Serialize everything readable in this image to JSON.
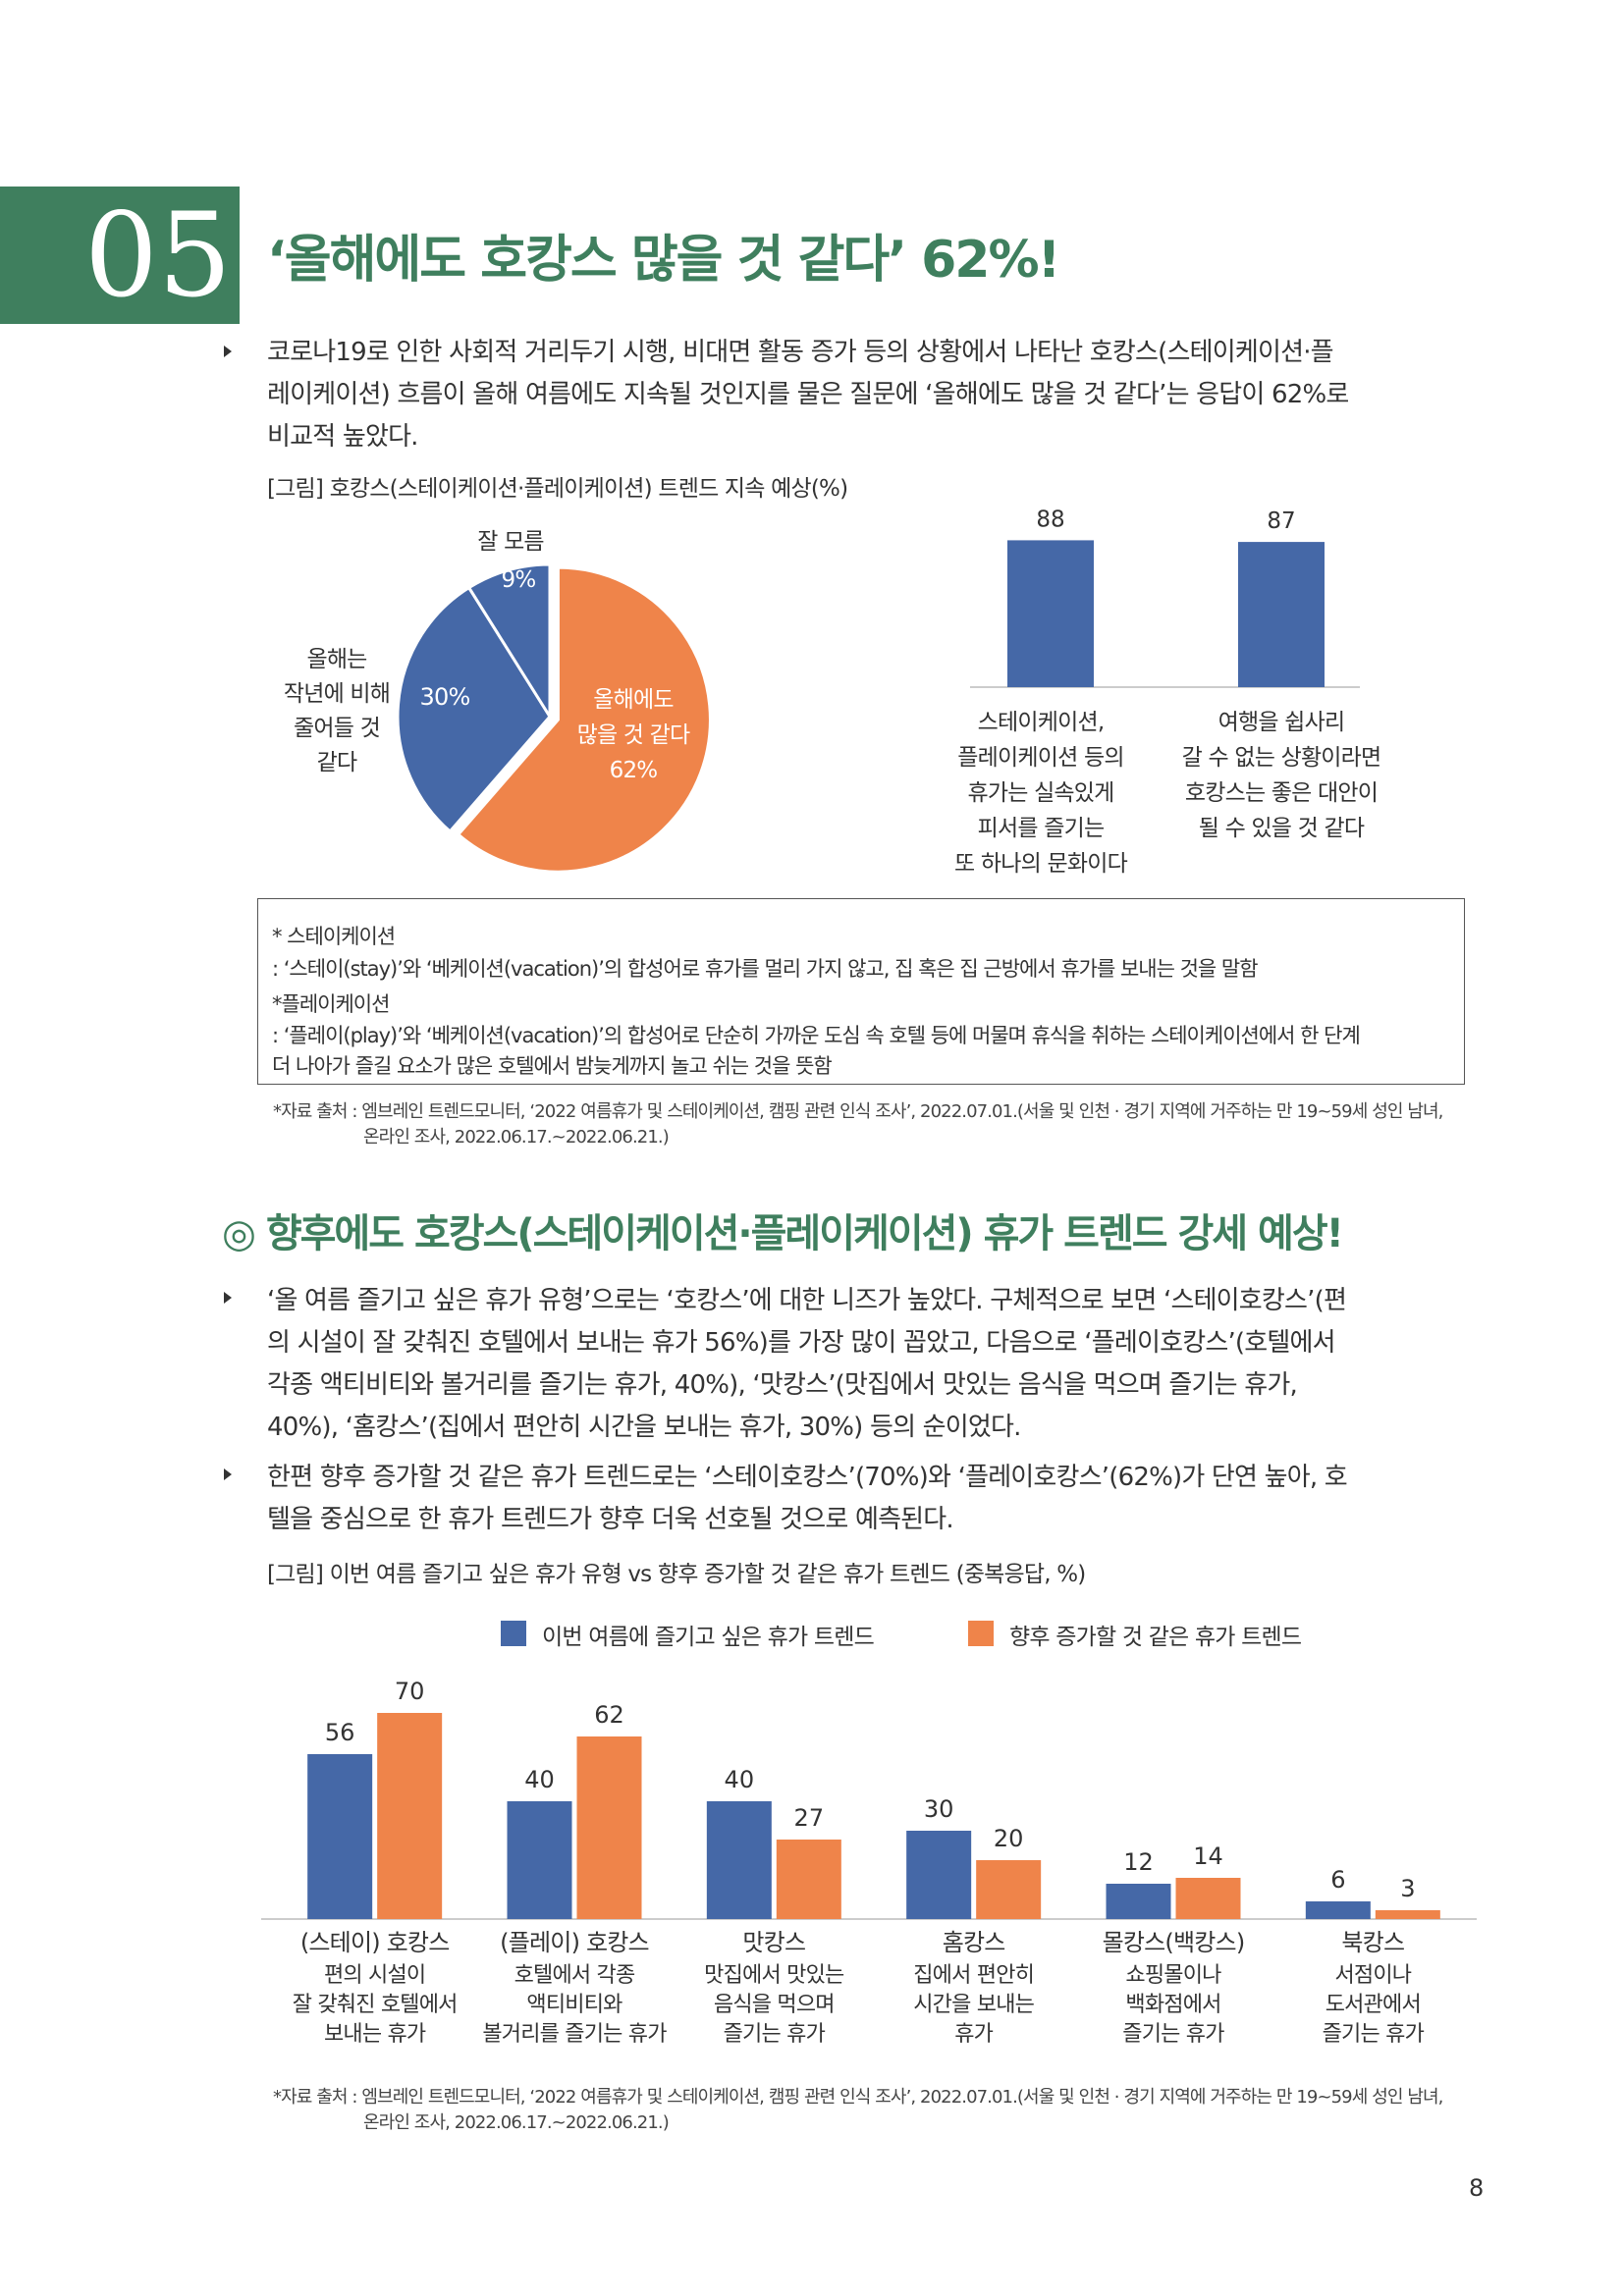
{
  "section": {
    "number": "05",
    "title": "‘올해에도 호캉스 많을 것 같다’ 62%!",
    "paragraph": [
      "코로나19로 인한 사회적 거리두기 시행, 비대면 활동 증가 등의 상황에서 나타난 호캉스(스테이케이션·플",
      "레이케이션) 흐름이 올해 여름에도 지속될 것인지를 물은 질문에 ‘올해에도 많을 것 같다’는 응답이 62%로",
      "비교적 높았다."
    ],
    "figure_caption": "[그림] 호캉스(스테이케이션·플레이케이션) 트렌드 지속 예상(%)"
  },
  "pie": {
    "slice_labels": {
      "unknown": {
        "name": "잘 모름",
        "pct": "9%"
      },
      "less": {
        "name_lines": [
          "올해는",
          "작년에 비해",
          "줄어들 것",
          "같다"
        ],
        "pct": "30%"
      },
      "more": {
        "name_lines": [
          "올해에도",
          "많을 것 같다",
          "62%"
        ]
      }
    }
  },
  "bar_small": {
    "values": [
      "88",
      "87"
    ],
    "labels": [
      [
        "스테이케이션,",
        "플레이케이션 등의",
        "휴가는 실속있게",
        "피서를 즐기는",
        "또 하나의 문화이다"
      ],
      [
        "여행을 쉽사리",
        "갈 수 없는 상황이라면",
        "호캉스는 좋은 대안이",
        "될 수 있을 것 같다"
      ]
    ]
  },
  "notes": [
    "* 스테이케이션",
    " : ‘스테이(stay)’와 ‘베케이션(vacation)’의 합성어로 휴가를 멀리 가지 않고, 집 혹은 집 근방에서 휴가를 보내는 것을 말함",
    "*플레이케이션",
    " : ‘플레이(play)’와 ‘베케이션(vacation)’의 합성어로 단순히 가까운 도심 속 호텔 등에 머물며 휴식을 취하는 스테이케이션에서 한 단계",
    "   더 나아가 즐길 요소가 많은 호텔에서 밤늦게까지 놀고 쉬는 것을 뜻함"
  ],
  "source": [
    "*자료 출처 : 엠브레인 트렌드모니터, ‘2022 여름휴가 및 스테이케이션, 캠핑 관련 인식 조사’, 2022.07.01.(서울 및 인천 · 경기 지역에 거주하는 만 19~59세 성인 남녀,",
    "온라인 조사, 2022.06.17.~2022.06.21.)"
  ],
  "section2": {
    "title": "◎ 향후에도 호캉스(스테이케이션·플레이케이션) 휴가 트렌드 강세 예상!",
    "bullet1": [
      "‘올 여름 즐기고 싶은 휴가 유형’으로는 ‘호캉스’에 대한 니즈가 높았다. 구체적으로 보면 ‘스테이호캉스’(편",
      "의 시설이 잘 갖춰진 호텔에서 보내는 휴가 56%)를 가장 많이 꼽았고, 다음으로 ‘플레이호캉스’(호텔에서",
      "각종 액티비티와 볼거리를 즐기는 휴가, 40%), ‘맛캉스’(맛집에서 맛있는 음식을 먹으며 즐기는 휴가,",
      "40%), ‘홈캉스’(집에서 편안히 시간을 보내는 휴가, 30%) 등의 순이었다."
    ],
    "bullet2": [
      "한편 향후 증가할 것 같은 휴가 트렌드로는 ‘스테이호캉스’(70%)와 ‘플레이호캉스’(62%)가 단연 높아, 호",
      "텔을 중심으로 한 휴가 트렌드가 향후 더욱 선호될 것으로 예측된다."
    ],
    "figure_caption": "[그림] 이번 여름 즐기고 싶은 휴가 유형 vs 향후 증가할 것 같은 휴가 트렌드 (중복응답, %)",
    "legend": [
      "이번 여름에 즐기고 싶은 휴가 트렌드",
      "향후 증가할 것 같은 휴가 트렌드"
    ],
    "categories": [
      "(스테이) 호캉스",
      "(플레이) 호캉스",
      "맛캉스",
      "홈캉스",
      "몰캉스(백캉스)",
      "북캉스"
    ],
    "descriptions": [
      [
        "편의 시설이",
        "잘 갖춰진 호텔에서",
        "보내는 휴가"
      ],
      [
        "호텔에서 각종",
        "액티비티와",
        "볼거리를 즐기는 휴가"
      ],
      [
        "맛집에서 맛있는",
        "음식을 먹으며",
        "즐기는 휴가"
      ],
      [
        "집에서 편안히",
        "시간을 보내는",
        "휴가"
      ],
      [
        "쇼핑몰이나",
        "백화점에서",
        "즐기는 휴가"
      ],
      [
        "서점이나",
        "도서관에서",
        "즐기는 휴가"
      ]
    ]
  },
  "source2": [
    "*자료 출처 : 엠브레인 트렌드모니터, ‘2022 여름휴가 및 스테이케이션, 캠핑 관련 인식 조사’, 2022.07.01.(서울 및 인천 · 경기 지역에 거주하는 만 19~59세 성인 남녀,",
    "온라인 조사, 2022.06.17.~2022.06.21.)"
  ],
  "page_number": "8",
  "colors": {
    "green": "#3f7f5e",
    "blue": "#4568a7",
    "orange": "#ef844a"
  },
  "chart_data": [
    {
      "type": "pie",
      "title": "",
      "labels": [
        "올해에도 많을 것 같다",
        "올해는 작년에 비해 줄어들 것 같다",
        "잘 모름"
      ],
      "values": [
        62,
        30,
        9
      ]
    },
    {
      "type": "bar",
      "categories": [
        "스테이케이션, 플레이케이션 등의 휴가는 실속있게 피서를 즐기는 또 하나의 문화이다",
        "여행을 쉽사리 갈 수 없는 상황이라면 호캉스는 좋은 대안이 될 수 있을 것 같다"
      ],
      "values": [
        88,
        87
      ],
      "ylim": [
        0,
        100
      ]
    },
    {
      "type": "bar",
      "categories": [
        "(스테이) 호캉스",
        "(플레이) 호캉스",
        "맛캉스",
        "홈캉스",
        "몰캉스(백캉스)",
        "북캉스"
      ],
      "series": [
        {
          "name": "이번 여름에 즐기고 싶은 휴가 트렌드",
          "values": [
            56,
            40,
            40,
            30,
            12,
            6
          ]
        },
        {
          "name": "향후 증가할 것 같은 휴가 트렌드",
          "values": [
            70,
            62,
            27,
            20,
            14,
            3
          ]
        }
      ],
      "ylim": [
        0,
        70
      ],
      "legend": "top"
    }
  ]
}
